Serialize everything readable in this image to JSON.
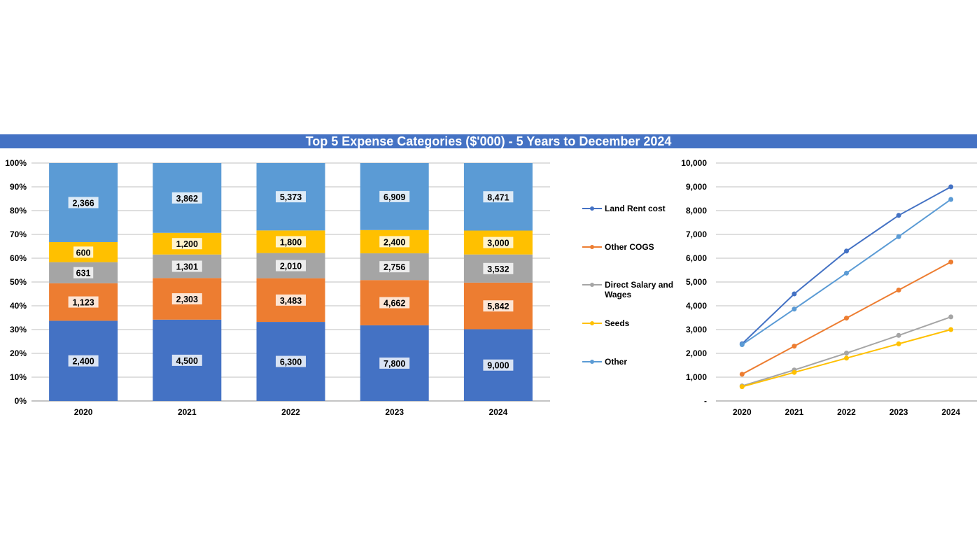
{
  "title": "Top 5 Expense Categories ($'000) - 5 Years to December 2024",
  "colors": {
    "title_bar": "#4472c4",
    "Land Rent cost": "#4472c4",
    "Other COGS": "#ed7d31",
    "Direct Salary and Wages": "#a5a5a5",
    "Seeds": "#ffc000",
    "Other": "#5b9bd5",
    "line_Land Rent cost": "#4472c4",
    "line_Other": "#5b9bd5"
  },
  "legend": {
    "items": [
      {
        "key": "Land Rent cost",
        "label_lines": [
          "Land Rent cost"
        ]
      },
      {
        "key": "Other COGS",
        "label_lines": [
          "Other COGS"
        ]
      },
      {
        "key": "Direct Salary and Wages",
        "label_lines": [
          "Direct Salary and",
          "Wages"
        ]
      },
      {
        "key": "Seeds",
        "label_lines": [
          "Seeds"
        ]
      },
      {
        "key": "Other",
        "label_lines": [
          "Other"
        ]
      }
    ],
    "placement": "center"
  },
  "chart_data": [
    {
      "type": "bar",
      "stacked": "percent",
      "categories": [
        "2020",
        "2021",
        "2022",
        "2023",
        "2024"
      ],
      "series": [
        {
          "name": "Land Rent cost",
          "values": [
            2400,
            4500,
            6300,
            7800,
            9000
          ],
          "labels": [
            "2,400",
            "4,500",
            "6,300",
            "7,800",
            "9,000"
          ]
        },
        {
          "name": "Other COGS",
          "values": [
            1123,
            2303,
            3483,
            4662,
            5842
          ],
          "labels": [
            "1,123",
            "2,303",
            "3,483",
            "4,662",
            "5,842"
          ]
        },
        {
          "name": "Direct Salary and Wages",
          "values": [
            631,
            1301,
            2010,
            2756,
            3532
          ],
          "labels": [
            "631",
            "1,301",
            "2,010",
            "2,756",
            "3,532"
          ]
        },
        {
          "name": "Seeds",
          "values": [
            600,
            1200,
            1800,
            2400,
            3000
          ],
          "labels": [
            "600",
            "1,200",
            "1,800",
            "2,400",
            "3,000"
          ]
        },
        {
          "name": "Other",
          "values": [
            2366,
            3862,
            5373,
            6909,
            8471
          ],
          "labels": [
            "2,366",
            "3,862",
            "5,373",
            "6,909",
            "8,471"
          ]
        }
      ],
      "yticks": [
        "0%",
        "10%",
        "20%",
        "30%",
        "40%",
        "50%",
        "60%",
        "70%",
        "80%",
        "90%",
        "100%"
      ],
      "ylim": [
        0,
        100
      ],
      "grid": true
    },
    {
      "type": "line",
      "categories": [
        "2020",
        "2021",
        "2022",
        "2023",
        "2024"
      ],
      "series": [
        {
          "name": "Land Rent cost",
          "values": [
            2400,
            4500,
            6300,
            7800,
            9000
          ]
        },
        {
          "name": "Other COGS",
          "values": [
            1123,
            2303,
            3483,
            4662,
            5842
          ]
        },
        {
          "name": "Direct Salary and Wages",
          "values": [
            631,
            1301,
            2010,
            2756,
            3532
          ]
        },
        {
          "name": "Seeds",
          "values": [
            600,
            1200,
            1800,
            2400,
            3000
          ]
        },
        {
          "name": "Other",
          "values": [
            2366,
            3862,
            5373,
            6909,
            8471
          ]
        }
      ],
      "yticks": [
        "-",
        "1,000",
        "2,000",
        "3,000",
        "4,000",
        "5,000",
        "6,000",
        "7,000",
        "8,000",
        "9,000",
        "10,000"
      ],
      "ylim": [
        0,
        10000
      ],
      "grid": true
    }
  ]
}
